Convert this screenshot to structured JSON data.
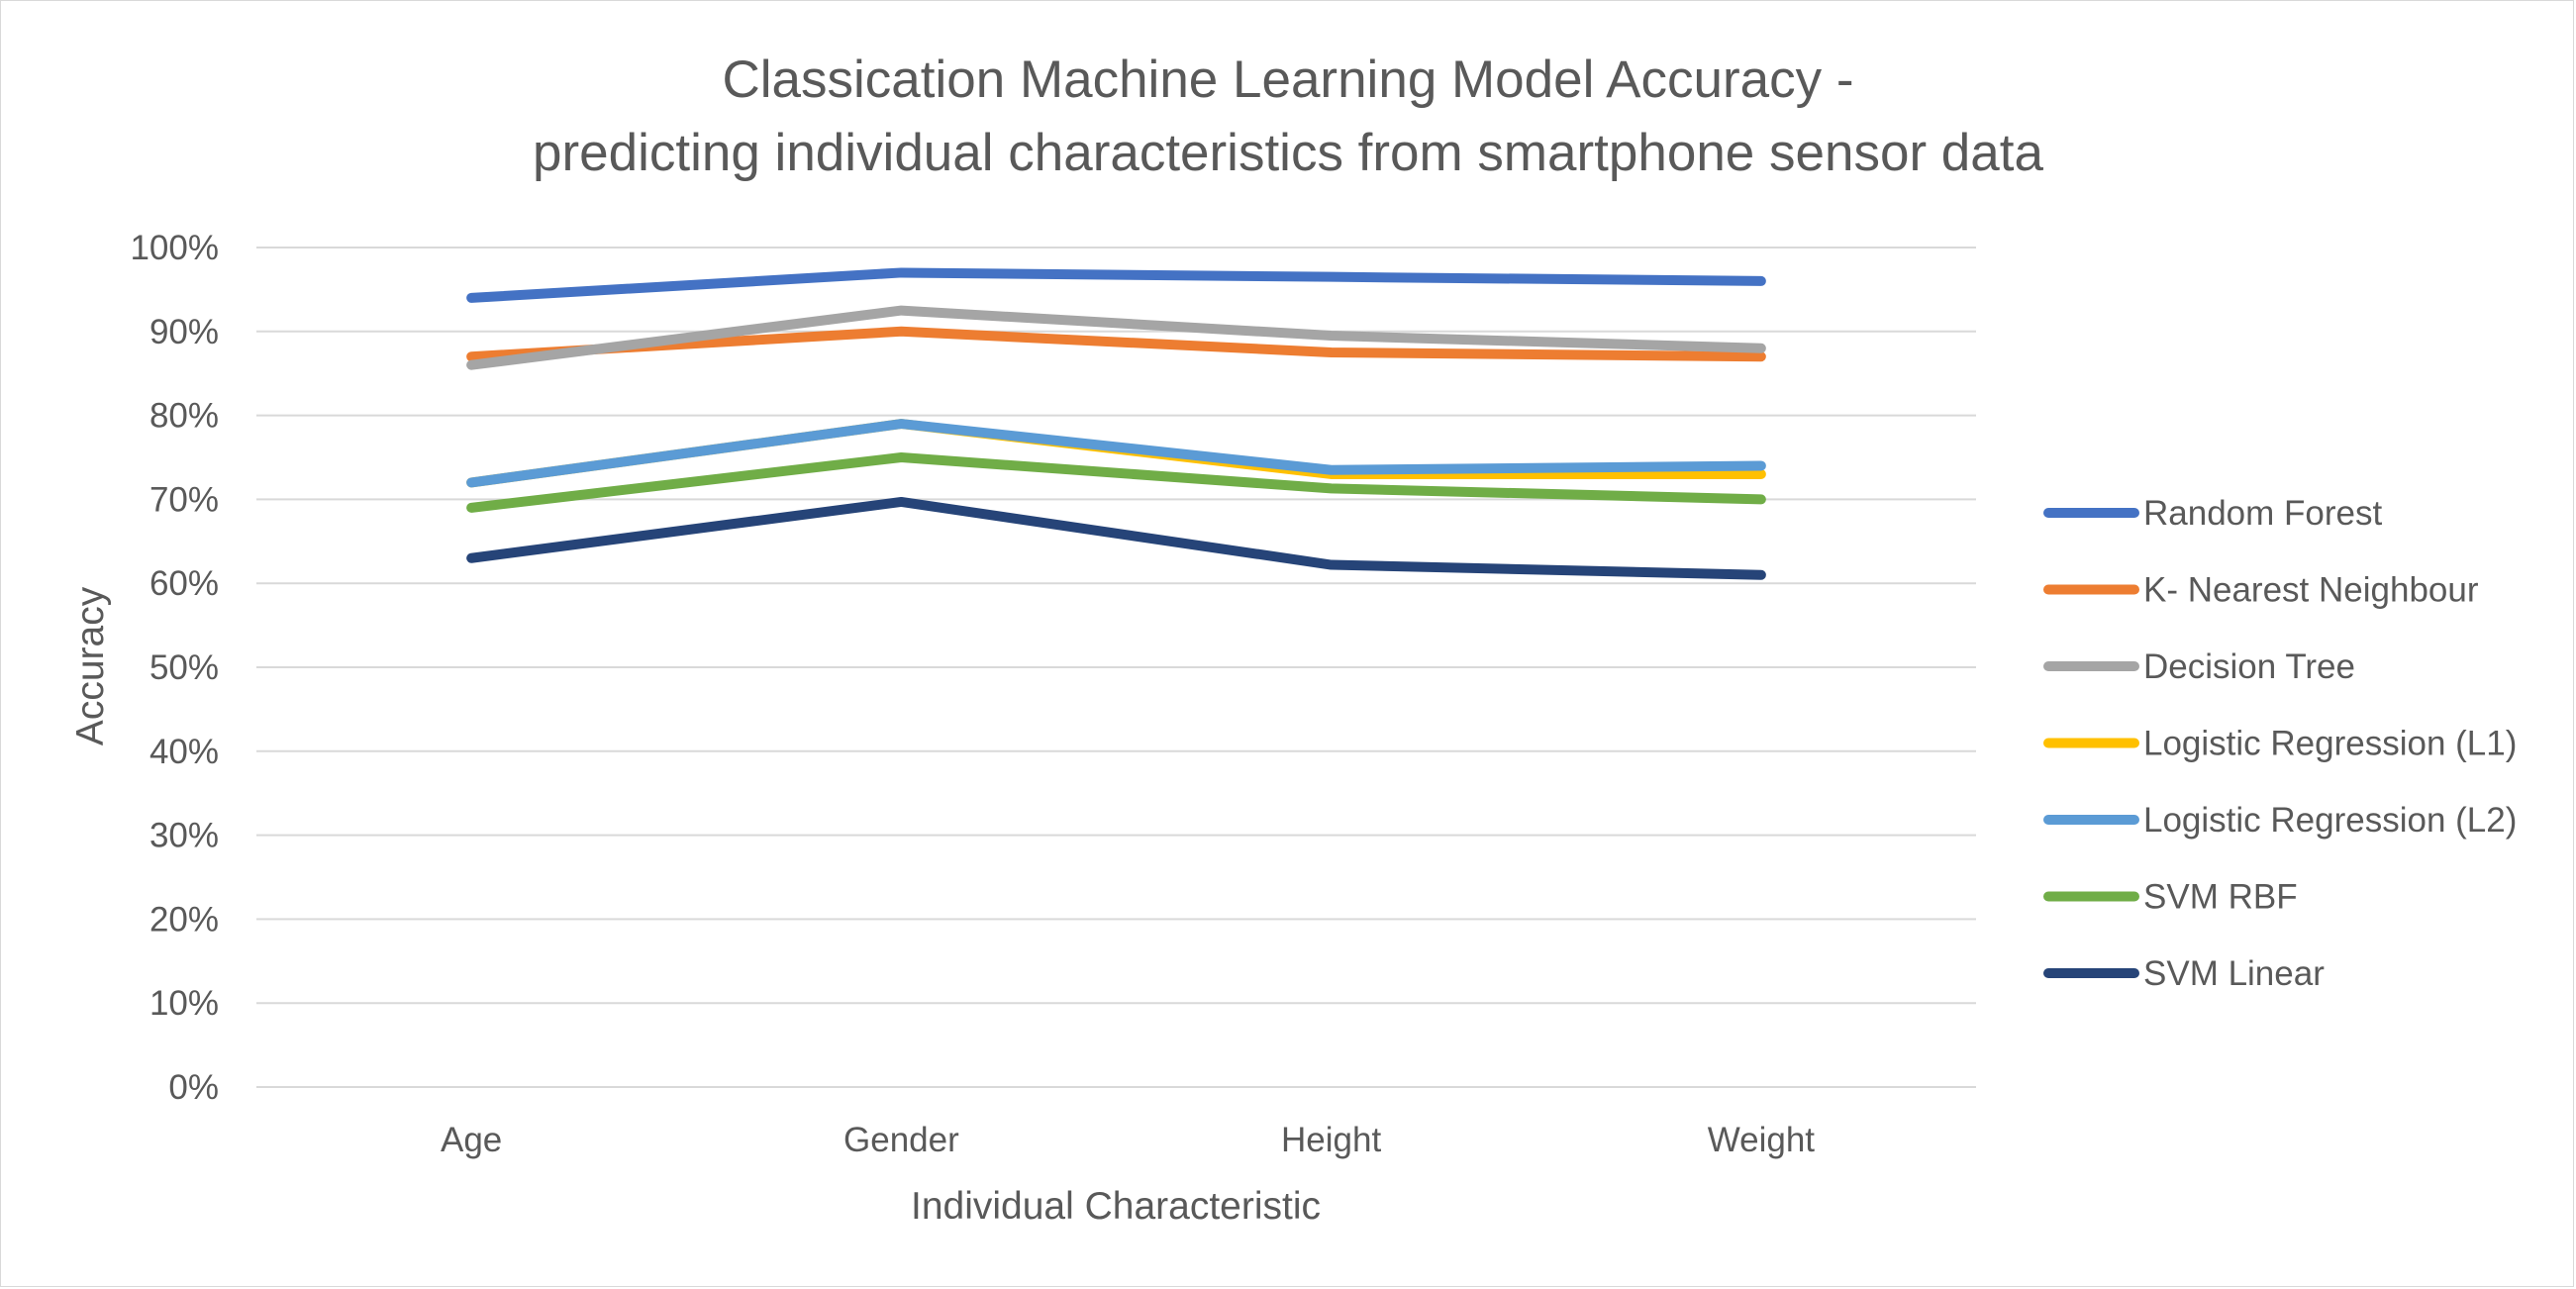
{
  "chart_data": {
    "type": "line",
    "title": [
      "Classication Machine Learning Model Accuracy -",
      "predicting individual characteristics from smartphone sensor data"
    ],
    "xlabel": "Individual Characteristic",
    "ylabel": "Accuracy",
    "categories": [
      "Age",
      "Gender",
      "Height",
      "Weight"
    ],
    "ylim": [
      0,
      1
    ],
    "yticks": [
      0,
      0.1,
      0.2,
      0.3,
      0.4,
      0.5,
      0.6,
      0.7,
      0.8,
      0.9,
      1.0
    ],
    "ytick_labels": [
      "0%",
      "10%",
      "20%",
      "30%",
      "40%",
      "50%",
      "60%",
      "70%",
      "80%",
      "90%",
      "100%"
    ],
    "grid": true,
    "legend_position": "right",
    "series": [
      {
        "name": "Random Forest",
        "color": "#4472c4",
        "values": [
          0.94,
          0.97,
          0.965,
          0.96
        ]
      },
      {
        "name": "K- Nearest Neighbour",
        "color": "#ed7d31",
        "values": [
          0.87,
          0.9,
          0.875,
          0.87
        ]
      },
      {
        "name": "Decision Tree",
        "color": "#a5a5a5",
        "values": [
          0.86,
          0.925,
          0.895,
          0.88
        ]
      },
      {
        "name": "Logistic Regression (L1)",
        "color": "#ffc000",
        "values": [
          0.72,
          0.79,
          0.73,
          0.73
        ]
      },
      {
        "name": "Logistic Regression (L2)",
        "color": "#5b9bd5",
        "values": [
          0.72,
          0.79,
          0.735,
          0.74
        ]
      },
      {
        "name": "SVM RBF",
        "color": "#70ad47",
        "values": [
          0.69,
          0.75,
          0.713,
          0.7
        ]
      },
      {
        "name": "SVM Linear",
        "color": "#264478",
        "values": [
          0.63,
          0.697,
          0.622,
          0.61
        ]
      }
    ]
  }
}
